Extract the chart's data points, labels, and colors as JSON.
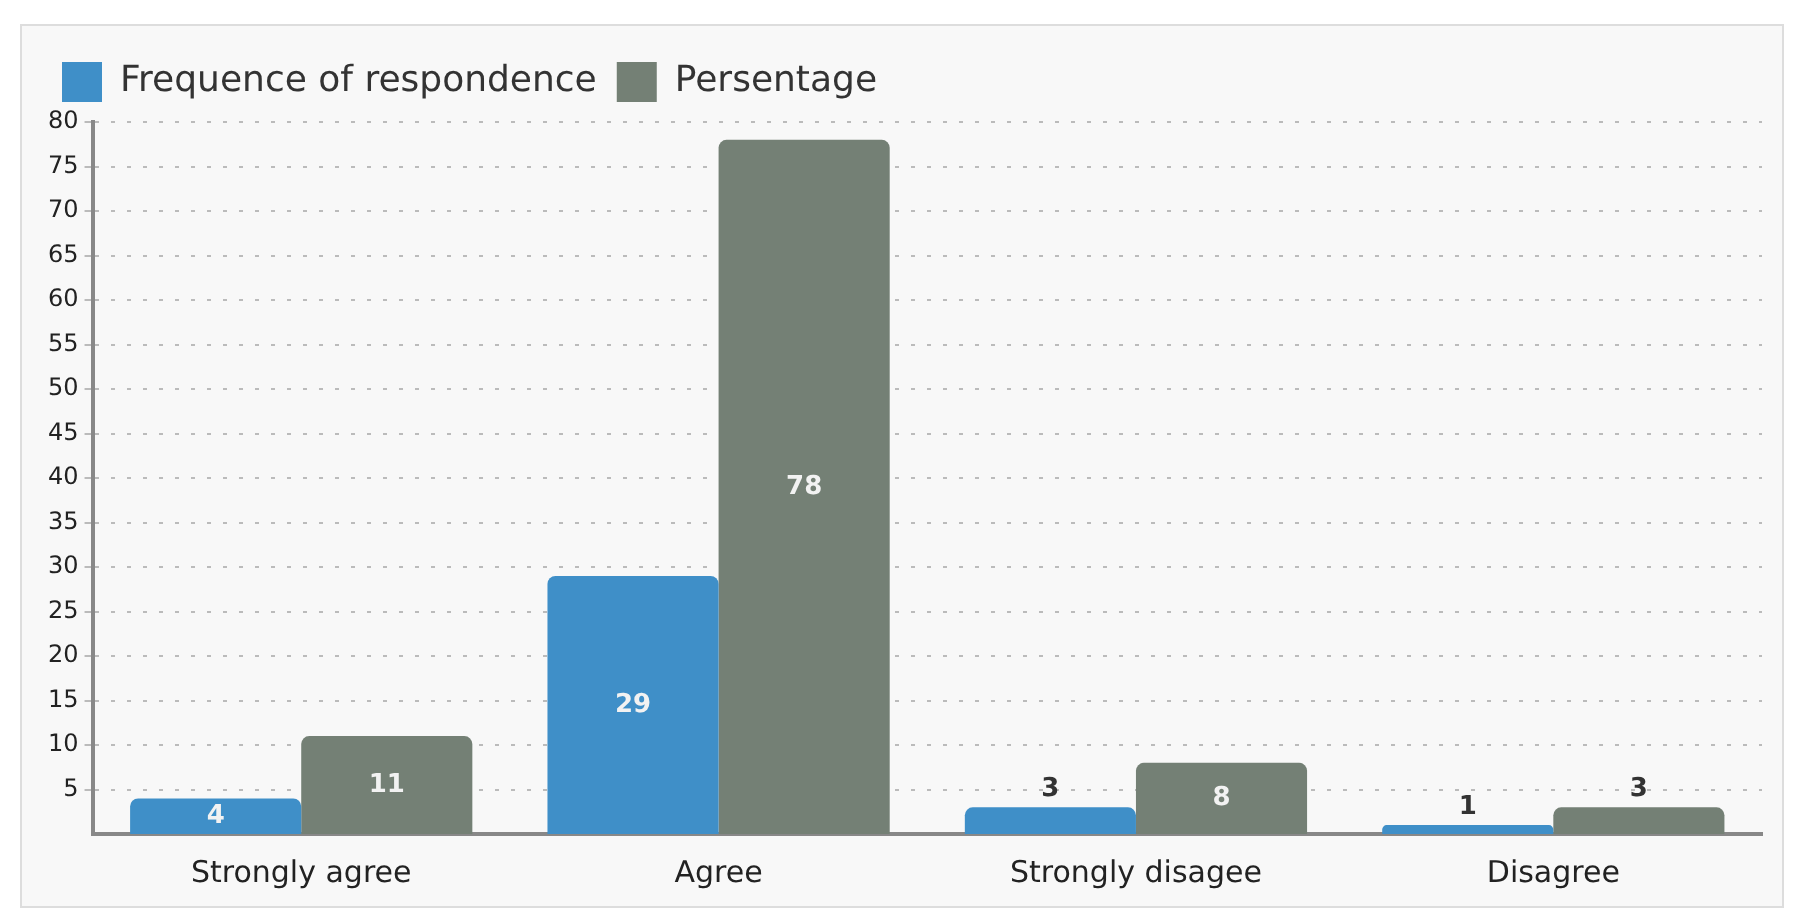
{
  "chart_data": {
    "type": "bar",
    "categories": [
      "Strongly agree",
      "Agree",
      "Strongly disagee",
      "Disagree"
    ],
    "series": [
      {
        "name": "Frequence of respondence",
        "color": "#3f8fc8",
        "values": [
          4,
          29,
          3,
          1
        ]
      },
      {
        "name": "Persentage",
        "color": "#748075",
        "values": [
          11,
          78,
          8,
          3
        ]
      }
    ],
    "ylim": [
      0,
      80
    ],
    "yticks": [
      5,
      10,
      15,
      20,
      25,
      30,
      35,
      40,
      45,
      50,
      55,
      60,
      65,
      70,
      75,
      80
    ],
    "grid": "y",
    "legend": "top left",
    "data_labels": true
  }
}
